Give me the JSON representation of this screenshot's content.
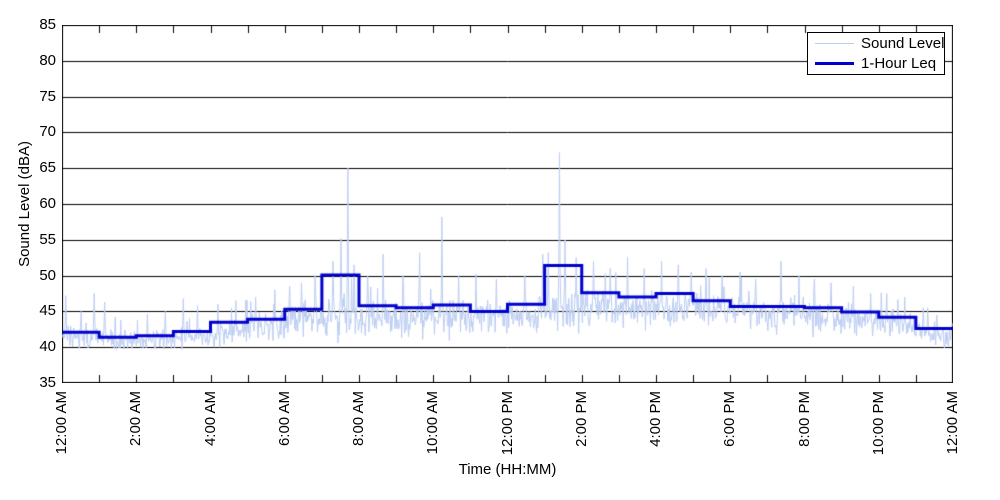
{
  "chart_data": {
    "type": "line",
    "title": "",
    "xlabel": "Time (HH:MM)",
    "ylabel": "Sound Level (dBA)",
    "ylim": [
      35,
      85
    ],
    "xlim_hours": [
      0,
      24
    ],
    "grid": "horizontal solid lines every 5 dBA, minor hour ticks on top and bottom axes",
    "y_ticks": [
      85,
      80,
      75,
      70,
      65,
      60,
      55,
      50,
      45,
      40,
      35
    ],
    "x_tick_hours": [
      0,
      2,
      4,
      6,
      8,
      10,
      12,
      14,
      16,
      18,
      20,
      22,
      24
    ],
    "x_tick_labels": [
      "12:00 AM",
      "2:00 AM",
      "4:00 AM",
      "6:00 AM",
      "8:00 AM",
      "10:00 AM",
      "12:00 PM",
      "2:00 PM",
      "4:00 PM",
      "6:00 PM",
      "8:00 PM",
      "10:00 PM",
      "12:00 AM"
    ],
    "colors": {
      "sound_level_line": "#bccdf2",
      "leq_line": "#0000cc",
      "grid_line": "#000000",
      "axis_line": "#000000",
      "background": "#ffffff"
    },
    "legend": {
      "position": "top-right",
      "entries": [
        {
          "label": "Sound Level",
          "color": "#bccdf2",
          "line_width": 1
        },
        {
          "label": "1-Hour Leq",
          "color": "#0000cc",
          "line_width": 3
        }
      ]
    },
    "series": [
      {
        "name": "1-Hour Leq",
        "style": "step",
        "units": "dBA",
        "hour_start_labels": [
          "12 AM",
          "1 AM",
          "2 AM",
          "3 AM",
          "4 AM",
          "5 AM",
          "6 AM",
          "7 AM",
          "8 AM",
          "9 AM",
          "10 AM",
          "11 AM",
          "12 PM",
          "1 PM",
          "2 PM",
          "3 PM",
          "4 PM",
          "5 PM",
          "6 PM",
          "7 PM",
          "8 PM",
          "9 PM",
          "10 PM",
          "11 PM"
        ],
        "hourly_values": [
          42.1,
          41.4,
          41.6,
          42.2,
          43.5,
          43.9,
          45.3,
          50.1,
          45.8,
          45.5,
          45.9,
          45.0,
          46.0,
          51.4,
          47.6,
          47.0,
          47.5,
          46.5,
          45.7,
          45.7,
          45.5,
          44.9,
          44.2,
          42.6
        ]
      },
      {
        "name": "Sound Level",
        "style": "noisy-minute-trace",
        "units": "dBA",
        "points_per_hour": 60,
        "seed": 987654321,
        "per_hour_base": [
          41.6,
          41.0,
          40.9,
          41.3,
          42.2,
          43.0,
          44.0,
          44.3,
          44.0,
          44.2,
          44.3,
          44.2,
          44.5,
          45.0,
          45.4,
          45.2,
          45.4,
          45.2,
          44.9,
          44.8,
          44.5,
          44.0,
          43.6,
          41.9
        ],
        "per_hour_spread": [
          0.9,
          0.8,
          0.8,
          0.9,
          1.0,
          1.2,
          1.4,
          1.5,
          1.4,
          1.4,
          1.4,
          1.3,
          1.4,
          1.5,
          1.4,
          1.4,
          1.4,
          1.4,
          1.3,
          1.3,
          1.3,
          1.3,
          1.2,
          1.0
        ],
        "notable_events": [
          [
            "00:06",
            47.2
          ],
          [
            "00:31",
            45.0
          ],
          [
            "00:52",
            47.5
          ],
          [
            "01:09",
            46.3
          ],
          [
            "01:26",
            44.2
          ],
          [
            "02:18",
            44.6
          ],
          [
            "02:30",
            39.8
          ],
          [
            "02:47",
            45.0
          ],
          [
            "03:16",
            46.8
          ],
          [
            "03:39",
            45.8
          ],
          [
            "04:12",
            46.0
          ],
          [
            "04:41",
            46.5
          ],
          [
            "05:13",
            47.0
          ],
          [
            "05:44",
            48.0
          ],
          [
            "06:08",
            48.5
          ],
          [
            "06:27",
            49.0
          ],
          [
            "06:49",
            50.0
          ],
          [
            "07:18",
            52.0
          ],
          [
            "07:31",
            55.2
          ],
          [
            "07:42",
            65.0
          ],
          [
            "07:52",
            51.5
          ],
          [
            "08:14",
            50.0
          ],
          [
            "08:39",
            53.0
          ],
          [
            "09:11",
            50.0
          ],
          [
            "09:38",
            53.2
          ],
          [
            "10:14",
            58.2
          ],
          [
            "10:41",
            50.0
          ],
          [
            "11:09",
            50.2
          ],
          [
            "11:42",
            49.5
          ],
          [
            "12:28",
            50.0
          ],
          [
            "12:57",
            53.0
          ],
          [
            "13:06",
            53.2
          ],
          [
            "13:24",
            67.2
          ],
          [
            "13:33",
            55.0
          ],
          [
            "13:51",
            52.5
          ],
          [
            "14:19",
            52.0
          ],
          [
            "14:46",
            51.0
          ],
          [
            "15:14",
            52.6
          ],
          [
            "15:41",
            51.0
          ],
          [
            "16:09",
            52.0
          ],
          [
            "16:36",
            51.5
          ],
          [
            "16:57",
            50.5
          ],
          [
            "17:21",
            51.0
          ],
          [
            "17:47",
            50.0
          ],
          [
            "18:16",
            50.5
          ],
          [
            "18:41",
            49.5
          ],
          [
            "19:22",
            52.0
          ],
          [
            "19:51",
            50.0
          ],
          [
            "20:16",
            49.5
          ],
          [
            "20:43",
            49.0
          ],
          [
            "21:19",
            48.5
          ],
          [
            "21:47",
            47.5
          ],
          [
            "22:13",
            47.5
          ],
          [
            "22:42",
            47.0
          ],
          [
            "23:12",
            45.5
          ],
          [
            "23:34",
            44.5
          ],
          [
            "23:46",
            39.9
          ]
        ]
      }
    ]
  }
}
